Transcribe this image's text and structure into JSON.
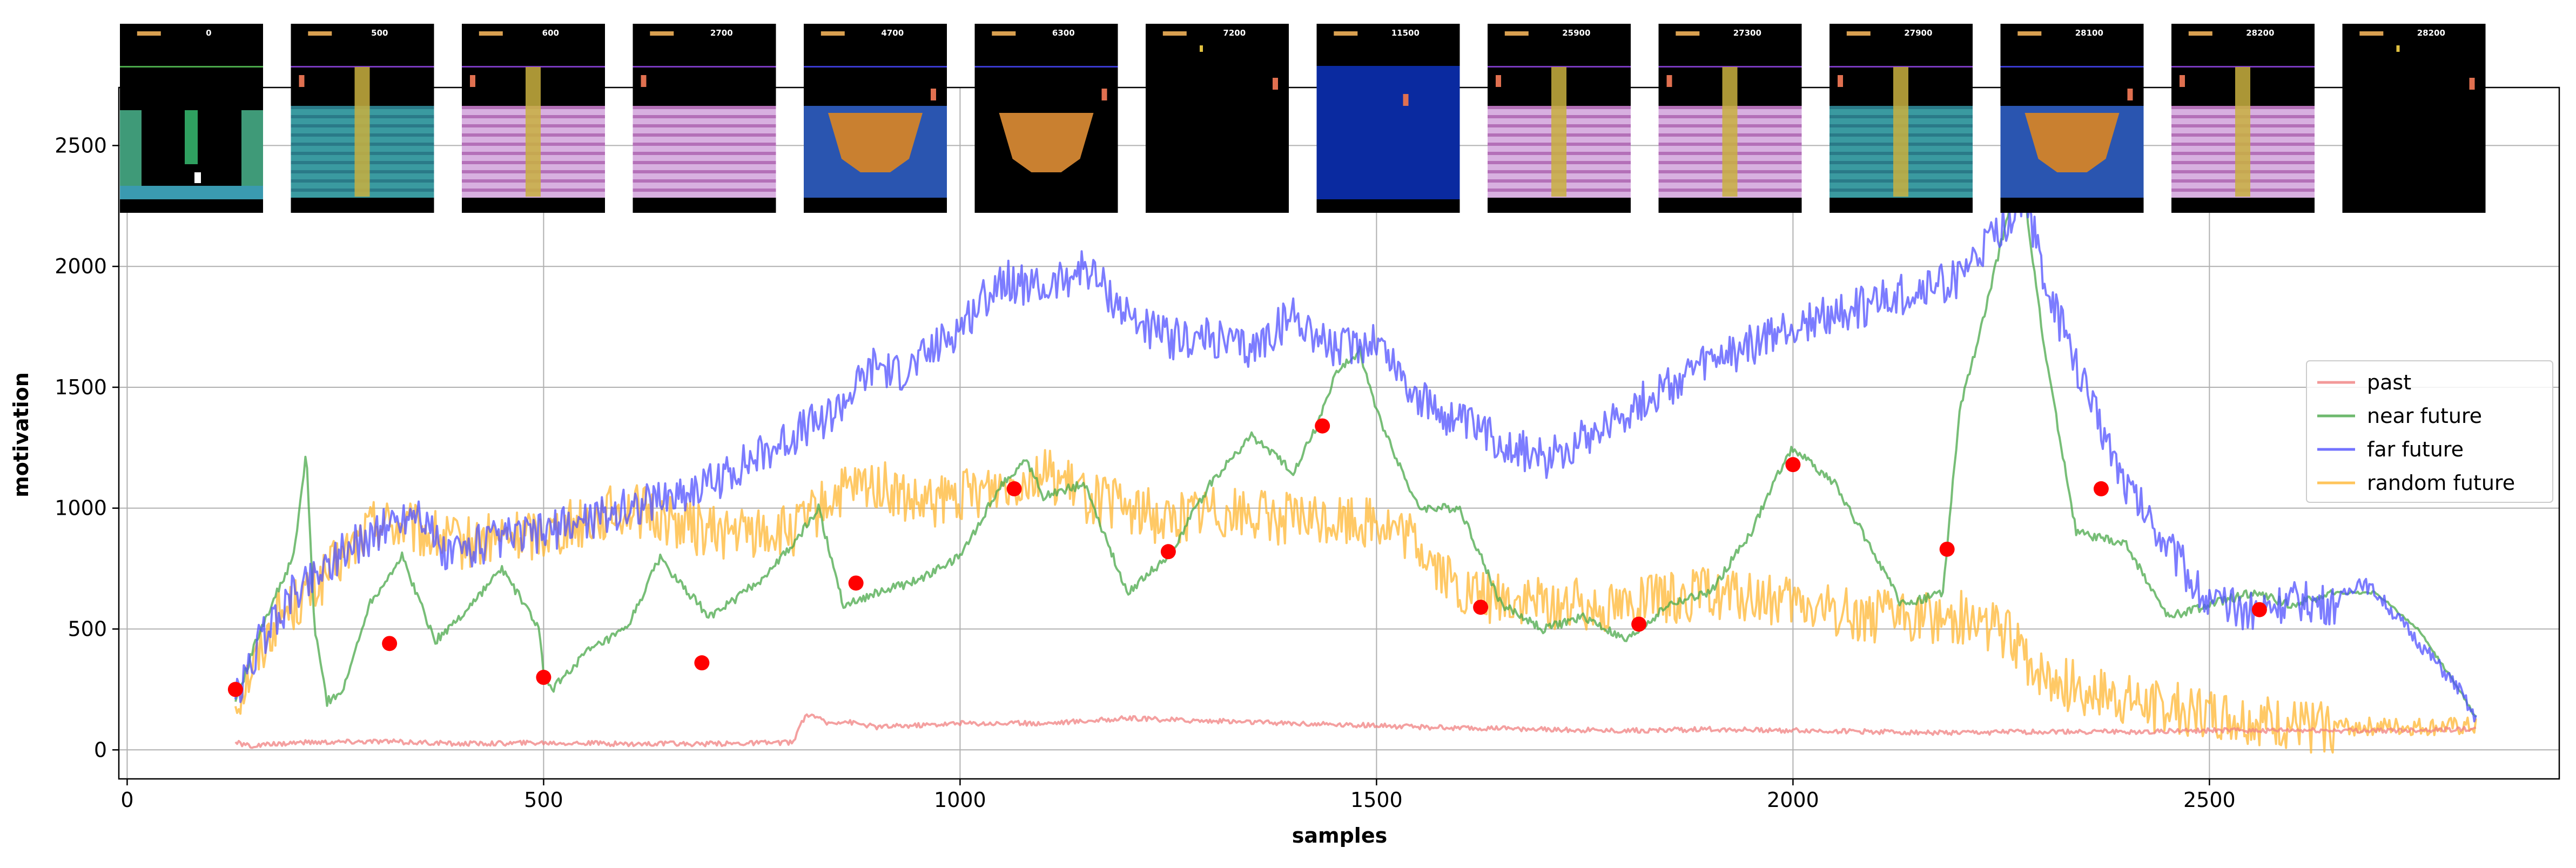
{
  "chart_data": {
    "type": "line",
    "xlabel": "samples",
    "ylabel": "motivation",
    "xlim": [
      -10,
      2920
    ],
    "ylim": [
      -120,
      2740
    ],
    "x_ticks": [
      0,
      500,
      1000,
      1500,
      2000,
      2500
    ],
    "y_ticks": [
      0,
      500,
      1000,
      1500,
      2000,
      2500
    ],
    "grid": true,
    "legend_position": "center-right",
    "series": [
      {
        "name": "past",
        "color": "#f08080",
        "x": [
          130,
          150,
          200,
          300,
          400,
          500,
          600,
          700,
          780,
          800,
          810,
          820,
          840,
          860,
          900,
          1000,
          1100,
          1200,
          1300,
          1400,
          1500,
          1600,
          1700,
          1800,
          1900,
          2000,
          2100,
          2200,
          2300,
          2400,
          2500,
          2600,
          2700,
          2800,
          2820
        ],
        "y": [
          30,
          15,
          30,
          35,
          25,
          30,
          25,
          25,
          30,
          30,
          120,
          150,
          110,
          120,
          95,
          110,
          110,
          130,
          120,
          110,
          100,
          90,
          85,
          80,
          85,
          80,
          75,
          70,
          75,
          75,
          80,
          80,
          80,
          85,
          85
        ]
      },
      {
        "name": "near future",
        "color": "#4aa84a",
        "x": [
          130,
          160,
          200,
          215,
          225,
          240,
          260,
          290,
          330,
          370,
          400,
          450,
          495,
          500,
          510,
          550,
          600,
          640,
          660,
          700,
          760,
          800,
          830,
          860,
          900,
          950,
          1000,
          1050,
          1080,
          1100,
          1150,
          1200,
          1250,
          1300,
          1350,
          1400,
          1430,
          1450,
          1480,
          1500,
          1550,
          1600,
          1650,
          1700,
          1750,
          1800,
          1850,
          1900,
          1950,
          1990,
          2000,
          2050,
          2100,
          2130,
          2180,
          2200,
          2230,
          2260,
          2280,
          2300,
          2340,
          2400,
          2450,
          2500,
          2550,
          2600,
          2650,
          2700,
          2750,
          2800,
          2820
        ],
        "y": [
          200,
          500,
          800,
          1230,
          500,
          200,
          250,
          600,
          800,
          450,
          550,
          750,
          500,
          300,
          250,
          400,
          500,
          800,
          700,
          550,
          700,
          850,
          1000,
          600,
          650,
          700,
          800,
          1100,
          1200,
          1050,
          1100,
          650,
          800,
          1100,
          1300,
          1150,
          1350,
          1550,
          1650,
          1400,
          1000,
          1000,
          600,
          500,
          550,
          450,
          600,
          650,
          900,
          1200,
          1250,
          1100,
          800,
          600,
          650,
          1400,
          1800,
          2250,
          2250,
          1700,
          900,
          850,
          550,
          600,
          650,
          600,
          650,
          650,
          500,
          250,
          130
        ]
      },
      {
        "name": "far future",
        "color": "#5050ff",
        "x": [
          130,
          160,
          200,
          250,
          300,
          350,
          380,
          420,
          500,
          600,
          700,
          800,
          850,
          900,
          920,
          950,
          1000,
          1050,
          1100,
          1150,
          1200,
          1250,
          1300,
          1350,
          1400,
          1450,
          1500,
          1550,
          1600,
          1700,
          1800,
          1900,
          2000,
          2100,
          2200,
          2250,
          2280,
          2300,
          2350,
          2400,
          2450,
          2500,
          2550,
          2600,
          2650,
          2680,
          2700,
          2750,
          2800,
          2820
        ],
        "y": [
          200,
          450,
          650,
          800,
          900,
          1000,
          800,
          850,
          900,
          1000,
          1100,
          1300,
          1400,
          1600,
          1550,
          1600,
          1750,
          1950,
          1900,
          2000,
          1800,
          1700,
          1700,
          1650,
          1800,
          1650,
          1700,
          1450,
          1350,
          1200,
          1400,
          1600,
          1750,
          1850,
          1950,
          2150,
          2300,
          1950,
          1500,
          1100,
          850,
          600,
          580,
          620,
          600,
          700,
          650,
          450,
          250,
          120
        ]
      },
      {
        "name": "random future",
        "color": "#ffb733",
        "x": [
          130,
          180,
          220,
          260,
          300,
          400,
          500,
          600,
          700,
          800,
          850,
          900,
          950,
          1000,
          1050,
          1100,
          1150,
          1200,
          1250,
          1300,
          1400,
          1500,
          1550,
          1600,
          1700,
          1800,
          1900,
          2000,
          2100,
          2200,
          2250,
          2300,
          2400,
          2500,
          2600,
          2700,
          2800,
          2820
        ],
        "y": [
          200,
          550,
          650,
          800,
          950,
          850,
          900,
          1000,
          900,
          900,
          1050,
          1100,
          1000,
          1050,
          1100,
          1150,
          1050,
          1000,
          950,
          1000,
          950,
          950,
          850,
          650,
          600,
          600,
          650,
          600,
          550,
          550,
          500,
          300,
          200,
          150,
          100,
          95,
          95,
          95
        ]
      }
    ],
    "markers": {
      "color": "#ff0000",
      "points": [
        [
          130,
          250
        ],
        [
          315,
          440
        ],
        [
          500,
          300
        ],
        [
          690,
          360
        ],
        [
          875,
          690
        ],
        [
          1065,
          1080
        ],
        [
          1250,
          820
        ],
        [
          1435,
          1340
        ],
        [
          1625,
          590
        ],
        [
          1815,
          520
        ],
        [
          2000,
          1180
        ],
        [
          2185,
          830
        ],
        [
          2370,
          1080
        ],
        [
          2560,
          580
        ]
      ]
    },
    "thumbnails": [
      {
        "score": "0",
        "scene": "start-room"
      },
      {
        "score": "500",
        "scene": "ladder-room"
      },
      {
        "score": "600",
        "scene": "ladder-room"
      },
      {
        "score": "2700",
        "scene": "conveyor-room"
      },
      {
        "score": "4700",
        "scene": "pit-room"
      },
      {
        "score": "6300",
        "scene": "pit-room"
      },
      {
        "score": "7200",
        "scene": "dark-room"
      },
      {
        "score": "11500",
        "scene": "water-room"
      },
      {
        "score": "25900",
        "scene": "ladder-room"
      },
      {
        "score": "27300",
        "scene": "ladder-room"
      },
      {
        "score": "27900",
        "scene": "ladder-room"
      },
      {
        "score": "28100",
        "scene": "pit-room"
      },
      {
        "score": "28200",
        "scene": "ladder-room"
      },
      {
        "score": "28200",
        "scene": "dark-room"
      }
    ]
  }
}
